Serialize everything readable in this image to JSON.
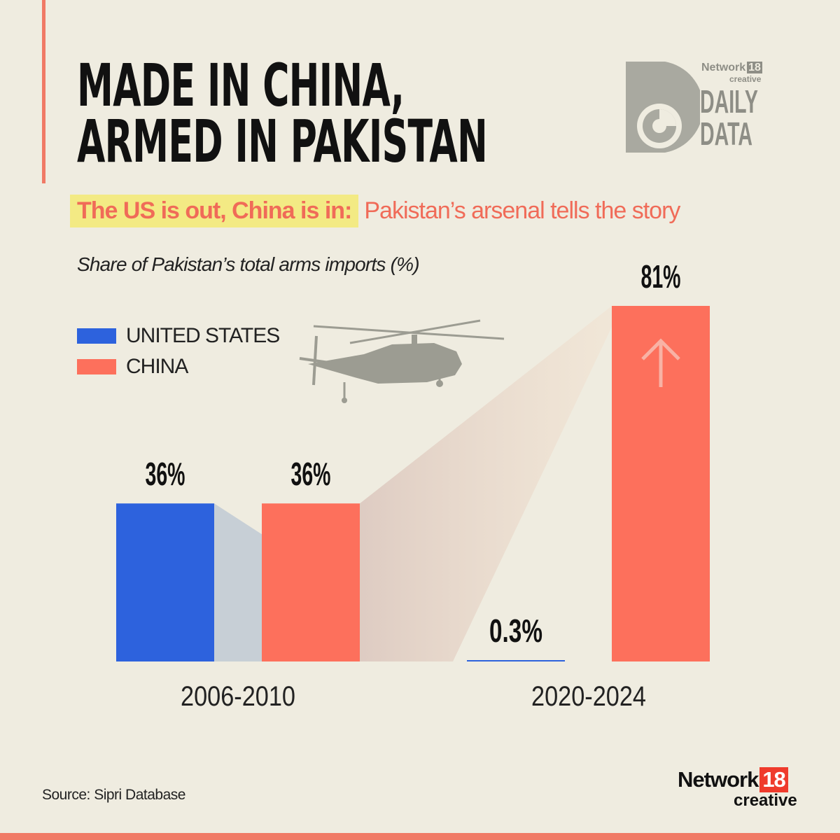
{
  "title": {
    "line1": "MADE IN CHINA,",
    "line2": "ARMED IN PAKISTAN"
  },
  "subtitle": {
    "highlight": "The US is out, China is in:",
    "rest": "Pakistan’s arsenal tells the story"
  },
  "logo": {
    "network": "Network",
    "number": "18",
    "creative": "creative",
    "daily": "DAILY",
    "data": "DATA"
  },
  "footer": {
    "source": "Source: Sipri Database",
    "brand_network": "Network",
    "brand_number": "18",
    "brand_creative": "creative"
  },
  "chart_data": {
    "type": "bar",
    "title": "Share of Pakistan’s total arms imports (%)",
    "categories": [
      "2006-2010",
      "2020-2024"
    ],
    "series": [
      {
        "name": "UNITED STATES",
        "values": [
          36,
          0.3
        ],
        "labels": [
          "36%",
          "0.3%"
        ],
        "color": "#2d62dd"
      },
      {
        "name": "CHINA",
        "values": [
          36,
          81
        ],
        "labels": [
          "36%",
          "81%"
        ],
        "color": "#fd705c"
      }
    ],
    "ylim": [
      0,
      81
    ],
    "grid": false,
    "legend": "top-left",
    "annotations": [
      "up-arrow-icon",
      "helicopter-icon"
    ]
  }
}
